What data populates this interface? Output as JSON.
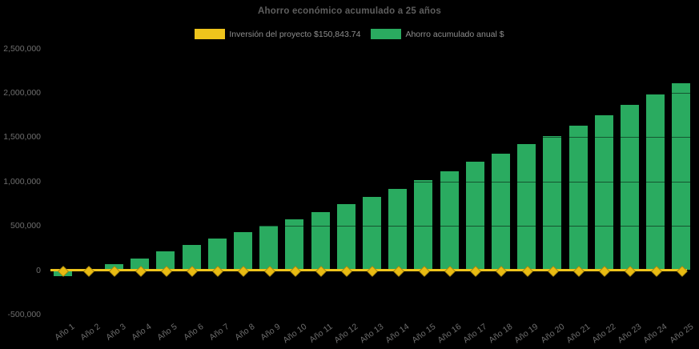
{
  "chart_data": {
    "type": "bar",
    "title": "Ahorro económico acumulado a 25 años",
    "categories": [
      "Año 1",
      "Año 2",
      "Año 3",
      "Año 4",
      "Año 5",
      "Año 6",
      "Año 7",
      "Año 8",
      "Año 9",
      "Año 10",
      "Año 11",
      "Año 12",
      "Año 13",
      "Año 14",
      "Año 15",
      "Año 16",
      "Año 17",
      "Año 18",
      "Año 19",
      "Año 20",
      "Año 21",
      "Año 22",
      "Año 23",
      "Año 24",
      "Año 25"
    ],
    "series": [
      {
        "name": "Inversión del proyecto $150,843.74",
        "type": "line",
        "color": "#EEC41C",
        "marker": "diamond",
        "marker_color": "#E9BB12",
        "values": [
          0,
          0,
          0,
          0,
          0,
          0,
          0,
          0,
          0,
          0,
          0,
          0,
          0,
          0,
          0,
          0,
          0,
          0,
          0,
          0,
          0,
          0,
          0,
          0,
          0
        ]
      },
      {
        "name": "Ahorro acumulado anual $",
        "type": "bar",
        "color": "#2AAB60",
        "values": [
          -65000,
          -5000,
          65000,
          135000,
          210000,
          285000,
          355000,
          425000,
          500000,
          570000,
          655000,
          745000,
          825000,
          915000,
          1015000,
          1115000,
          1220000,
          1315000,
          1420000,
          1515000,
          1630000,
          1745000,
          1860000,
          1980000,
          2105000
        ]
      }
    ],
    "xlabel": "",
    "ylabel": "",
    "ylim": [
      -500000,
      2500000
    ],
    "ytick_step": 500000,
    "yticks": [
      "-500,000",
      "0",
      "500,000",
      "1,000,000",
      "1,500,000",
      "2,000,000",
      "2,500,000"
    ],
    "legend_position": "top",
    "grid": "horizontal, faint dark lines visible over bars",
    "colors": {
      "background": "#000000",
      "title_text": "#5E5E5E",
      "axis_label_text": "#6E6E6E",
      "legend_text": "#8E8E8E",
      "gridline": "rgba(0,0,0,0.5)"
    }
  }
}
